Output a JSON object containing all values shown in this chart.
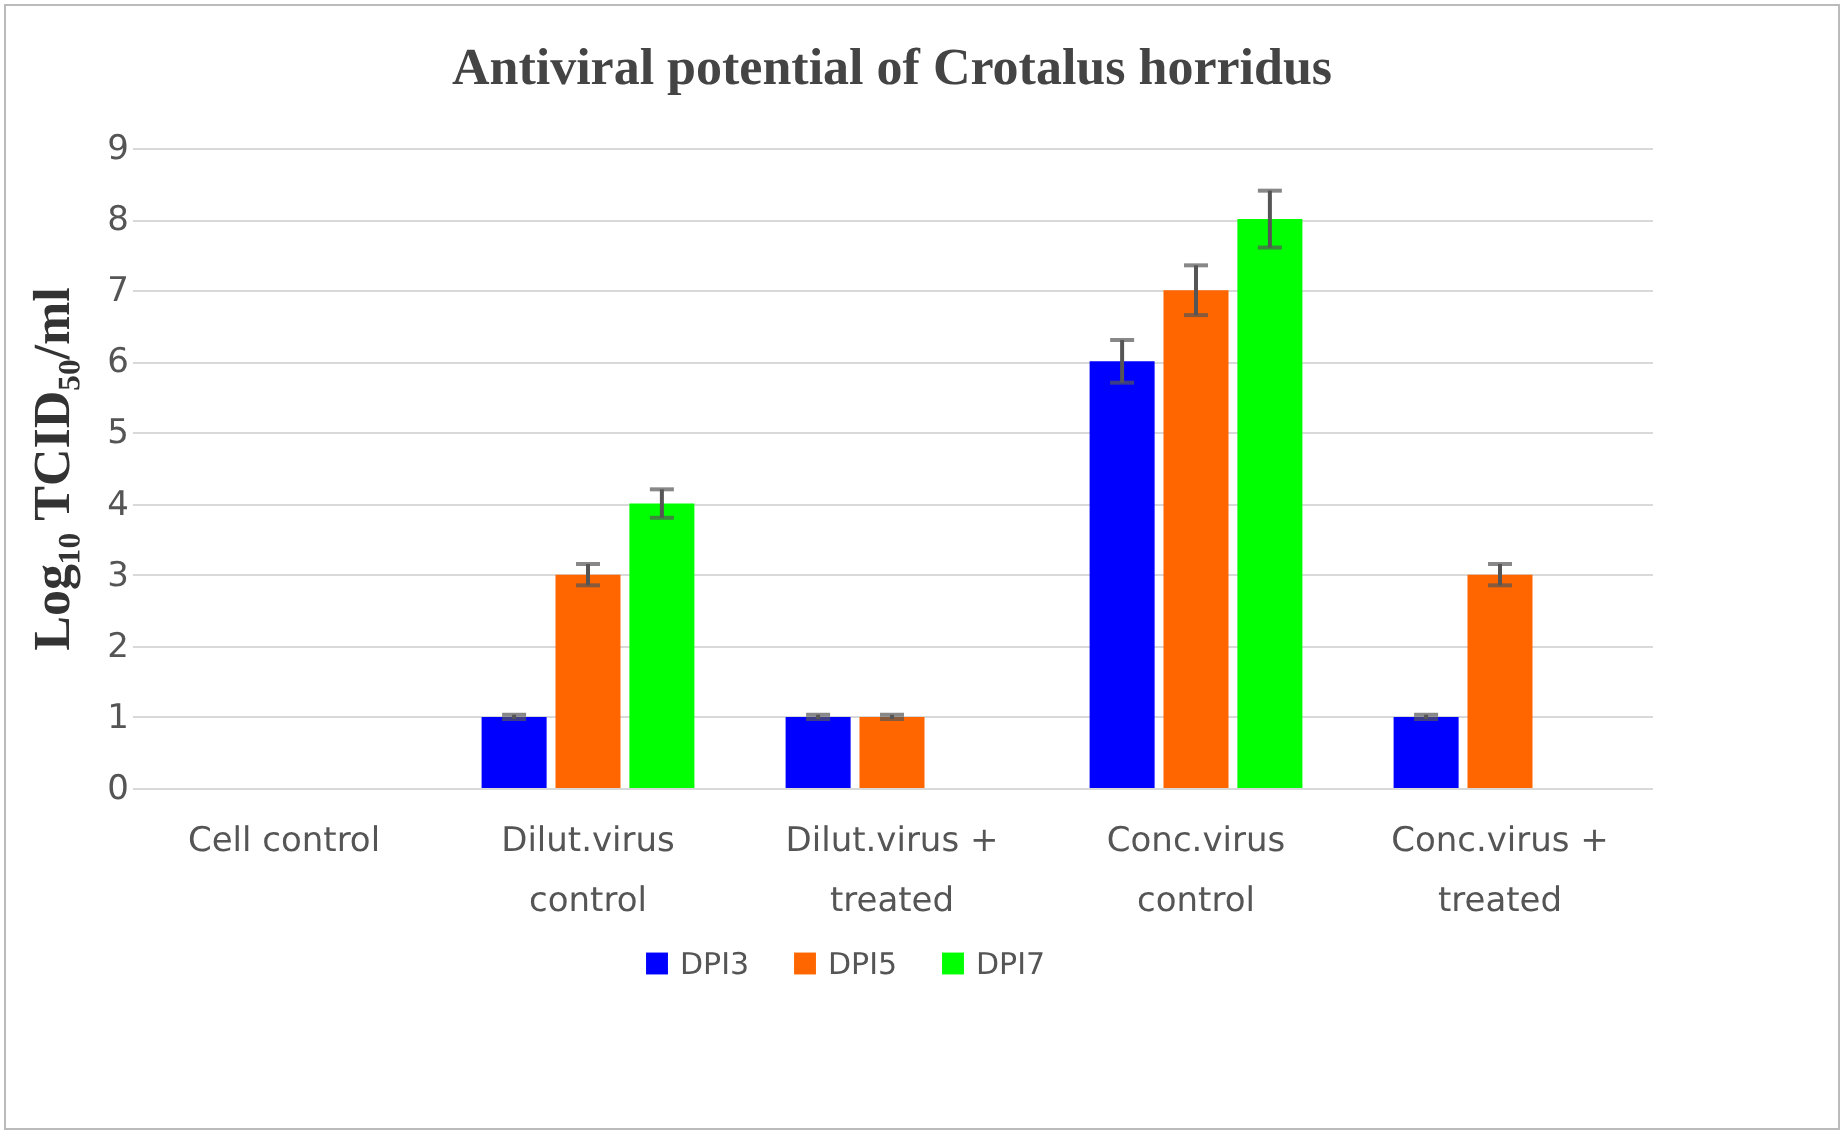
{
  "chart_data": {
    "type": "bar",
    "title": "Antiviral potential of Crotalus horridus",
    "ylabel": "Log₁₀ TCID₅₀/ml",
    "categories": [
      "Cell control",
      "Dilut.virus control",
      "Dilut.virus + treated",
      "Conc.virus control",
      "Conc.virus + treated"
    ],
    "series": [
      {
        "name": "DPI3",
        "color": "#0000ff",
        "values": [
          null,
          1,
          1,
          6,
          1
        ],
        "errors": [
          null,
          0.03,
          0.03,
          0.3,
          0.03
        ]
      },
      {
        "name": "DPI5",
        "color": "#ff6600",
        "values": [
          null,
          3,
          1,
          7,
          3
        ],
        "errors": [
          null,
          0.15,
          0.03,
          0.35,
          0.15
        ]
      },
      {
        "name": "DPI7",
        "color": "#00ff00",
        "values": [
          null,
          4,
          null,
          8,
          null
        ],
        "errors": [
          null,
          0.2,
          null,
          0.4,
          null
        ]
      }
    ],
    "ylim": [
      0,
      9
    ],
    "yticks": [
      0,
      1,
      2,
      3,
      4,
      5,
      6,
      7,
      8,
      9
    ],
    "grid": "y",
    "legend": "bottom"
  }
}
